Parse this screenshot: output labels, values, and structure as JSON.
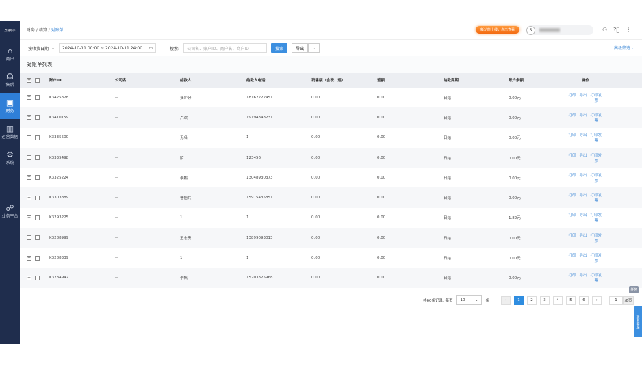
{
  "sidebar": {
    "logo": "点餐助手",
    "items": [
      {
        "label": "商户",
        "icon": "store-icon"
      },
      {
        "label": "售后",
        "icon": "headset-icon"
      },
      {
        "label": "财务",
        "icon": "wallet-icon",
        "active": true
      },
      {
        "label": "运营数据",
        "icon": "bar-chart-icon"
      },
      {
        "label": "系统",
        "icon": "gear-icon"
      },
      {
        "label": "业务平台",
        "icon": "org-chart-icon"
      }
    ]
  },
  "header": {
    "breadcrumb": [
      "财务",
      "结算",
      "对账单"
    ],
    "notice": "新功能上线，点击查看",
    "avatar": "S"
  },
  "filters": {
    "date_type": "按收货日期",
    "date_range": "2024-10-11 00:00 ~ 2024-10-11 24:00",
    "search_label": "搜索:",
    "search_placeholder": "公司名、账户ID、商户名、商户ID",
    "search_btn": "搜索",
    "export_btn": "导出",
    "advanced": "高级筛选"
  },
  "list_title": "对账单列表",
  "table": {
    "columns": [
      "账户ID",
      "公司名",
      "结款人",
      "结款人电话",
      "销售额（含税、运）",
      "差额",
      "结款周期",
      "账户余额",
      "操作"
    ],
    "rows": [
      [
        "K3425328",
        "--",
        "多少分",
        "18162222451",
        "0.00",
        "0.00",
        "日结",
        "0.00元"
      ],
      [
        "K3410159",
        "--",
        "卢欢",
        "19194343231",
        "0.00",
        "0.00",
        "日结",
        "0.00元"
      ],
      [
        "K3335500",
        "--",
        "无名",
        "1",
        "0.00",
        "0.00",
        "日结",
        "0.00元"
      ],
      [
        "K3335498",
        "--",
        "陌",
        "123456",
        "0.00",
        "0.00",
        "日结",
        "0.00元"
      ],
      [
        "K3325224",
        "--",
        "李鹏",
        "13048930373",
        "0.00",
        "0.00",
        "日结",
        "0.00元"
      ],
      [
        "K3303889",
        "--",
        "曹怡兵",
        "15915435851",
        "0.00",
        "0.00",
        "日结",
        "0.00元"
      ],
      [
        "K3293225",
        "--",
        "1",
        "1",
        "0.00",
        "0.00",
        "日结",
        "1.82元"
      ],
      [
        "K3288999",
        "--",
        "王志勇",
        "13899093013",
        "0.00",
        "0.00",
        "日结",
        "0.00元"
      ],
      [
        "K3288339",
        "--",
        "1",
        "1",
        "0.00",
        "0.00",
        "日结",
        "0.00元"
      ],
      [
        "K3284942",
        "--",
        "李帆",
        "15203325968",
        "0.00",
        "0.00",
        "日结",
        "0.00元"
      ]
    ],
    "actions": [
      "打印",
      "导出",
      "打印发票"
    ]
  },
  "pagination": {
    "total": "共60条记录, 每页",
    "page_size": "10",
    "unit": "条",
    "pages": [
      "1",
      "2",
      "3",
      "4",
      "5",
      "6"
    ],
    "current": "1",
    "jump": "1",
    "total_pages": "/6页"
  },
  "float": {
    "task": "任务",
    "service": "联系客服"
  }
}
